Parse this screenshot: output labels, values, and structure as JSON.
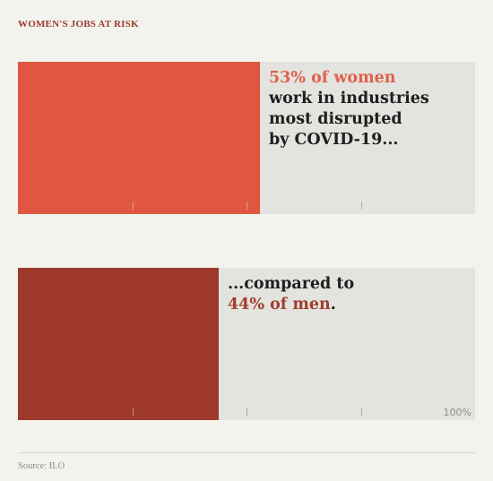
{
  "kicker": "WOMEN'S JOBS AT RISK",
  "colors": {
    "women": "#e05640",
    "men": "#9e392b",
    "women_text": "#e0604a",
    "men_text": "#a33d2e",
    "track": "#e3e3df",
    "background": "#f2f2ee"
  },
  "panel1": {
    "highlight": "53% of women",
    "rest": [
      "work in industries",
      "most disrupted",
      "by COVID-19..."
    ]
  },
  "panel2": {
    "line1": "...compared to",
    "highlight": "44% of men",
    "suffix": "."
  },
  "axis_end_label": "100%",
  "source": "Source: ILO",
  "chart_data": {
    "type": "bar",
    "orientation": "horizontal",
    "categories": [
      "Women",
      "Men"
    ],
    "values": [
      53,
      44
    ],
    "unit": "%",
    "xlim": [
      0,
      100
    ],
    "ticks": [
      25,
      50,
      75
    ],
    "title": "WOMEN'S JOBS AT RISK"
  }
}
